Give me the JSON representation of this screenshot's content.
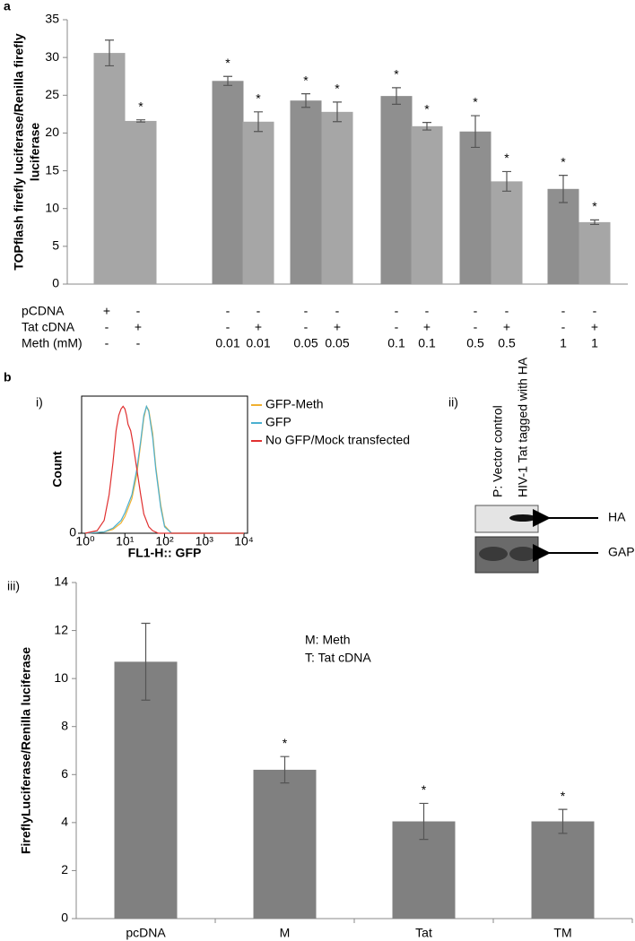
{
  "figure_panels": [
    "a",
    "b"
  ],
  "chart_data": [
    {
      "type": "bar",
      "ylabel": [
        "TOPflash firefly luciferase/Renilla firefly",
        "luciferase"
      ],
      "values": [
        30.6,
        21.6,
        26.9,
        21.5,
        24.3,
        22.8,
        24.9,
        20.9,
        20.2,
        13.6,
        12.6,
        8.2
      ],
      "errors": [
        1.7,
        0.15,
        0.6,
        1.3,
        0.9,
        1.3,
        1.1,
        0.5,
        2.1,
        1.3,
        1.8,
        0.3
      ],
      "markers": [
        null,
        "*",
        "*",
        "*",
        "*",
        "*",
        "*",
        "*",
        "*",
        "*",
        "*",
        "*"
      ],
      "colors": [
        "#a6a6a6",
        "#a6a6a6",
        "#8f8f8f",
        "#a6a6a6",
        "#8f8f8f",
        "#a6a6a6",
        "#8f8f8f",
        "#a6a6a6",
        "#8f8f8f",
        "#a6a6a6",
        "#8f8f8f",
        "#a6a6a6"
      ],
      "table_rows": [
        {
          "label": "pCDNA",
          "cells": [
            "+",
            "-",
            "-",
            "-",
            "-",
            "-",
            "-",
            "-",
            "-",
            "-",
            "-",
            "-"
          ]
        },
        {
          "label": "Tat cDNA",
          "cells": [
            "-",
            "+",
            "-",
            "+",
            "-",
            "+",
            "-",
            "+",
            "-",
            "+",
            "-",
            "+"
          ]
        },
        {
          "label": "Meth (mM)",
          "cells": [
            "-",
            "-",
            "0.01",
            "0.01",
            "0.05",
            "0.05",
            "0.1",
            "0.1",
            "0.5",
            "0.5",
            "1",
            "1"
          ]
        }
      ],
      "ylim": [
        0,
        35
      ],
      "yticks": [
        0,
        5,
        10,
        15,
        20,
        25,
        30,
        35
      ]
    },
    {
      "type": "line",
      "panel": "i)",
      "xlabel": "FL1-H:: GFP",
      "ylabel": "Count",
      "xscale": "log",
      "xlim": [
        1,
        10000
      ],
      "xticks": [
        {
          "value": 1,
          "label": "10⁰"
        },
        {
          "value": 10,
          "label": "10¹"
        },
        {
          "value": 100,
          "label": "10²"
        },
        {
          "value": 1000,
          "label": "10³"
        },
        {
          "value": 10000,
          "label": "10⁴"
        }
      ],
      "ylim": [
        0,
        100
      ],
      "yticks": [
        0
      ],
      "series": [
        {
          "name": "GFP-Meth",
          "color": "#f0b030",
          "x": [
            1,
            3,
            5,
            8,
            10,
            15,
            20,
            25,
            30,
            35,
            40,
            50,
            60,
            80,
            100,
            150,
            10000
          ],
          "values": [
            0,
            1,
            3,
            8,
            13,
            27,
            46,
            70,
            90,
            99,
            96,
            78,
            52,
            22,
            6,
            0,
            0
          ]
        },
        {
          "name": "GFP",
          "color": "#4ab0d0",
          "x": [
            1,
            3,
            5,
            8,
            10,
            15,
            20,
            25,
            30,
            35,
            40,
            50,
            60,
            80,
            100,
            150,
            10000
          ],
          "values": [
            0,
            1,
            4,
            10,
            16,
            30,
            50,
            72,
            92,
            99,
            95,
            75,
            50,
            20,
            5,
            0,
            0
          ]
        },
        {
          "name": "No GFP/Mock transfected",
          "color": "#e03030",
          "x": [
            1,
            2,
            3,
            4,
            5,
            6,
            7,
            8,
            9,
            10,
            11,
            12,
            14,
            16,
            20,
            25,
            30,
            40,
            50,
            70,
            10000
          ],
          "values": [
            0,
            2,
            10,
            30,
            55,
            80,
            92,
            97,
            99,
            97,
            92,
            85,
            80,
            70,
            50,
            30,
            15,
            5,
            2,
            0,
            0
          ]
        }
      ]
    },
    {
      "type": "bar",
      "panel": "iii)",
      "ylabel": "FireflyLuciferase/Renilla luciferase",
      "categories": [
        "pcDNA",
        "M",
        "Tat",
        "TM"
      ],
      "values": [
        10.7,
        6.2,
        4.05,
        4.05
      ],
      "errors": [
        1.6,
        0.55,
        0.75,
        0.5
      ],
      "markers": [
        null,
        "*",
        "*",
        "*"
      ],
      "color": "#808080",
      "annotations": [
        "M: Meth",
        "T: Tat cDNA"
      ],
      "ylim": [
        0,
        14
      ],
      "yticks": [
        0,
        2,
        4,
        6,
        8,
        10,
        12,
        14
      ]
    }
  ],
  "blot": {
    "panel": "ii)",
    "lanes": [
      "P: Vector  control",
      "HIV-1 Tat tagged with HA"
    ],
    "bands": [
      "HA",
      "GAPDH"
    ]
  }
}
